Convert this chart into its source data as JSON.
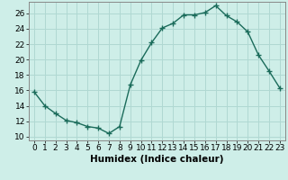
{
  "x": [
    0,
    1,
    2,
    3,
    4,
    5,
    6,
    7,
    8,
    9,
    10,
    11,
    12,
    13,
    14,
    15,
    16,
    17,
    18,
    19,
    20,
    21,
    22,
    23
  ],
  "y": [
    15.8,
    14.0,
    13.0,
    12.1,
    11.8,
    11.3,
    11.1,
    10.4,
    11.3,
    16.7,
    19.9,
    22.2,
    24.1,
    24.7,
    25.8,
    25.8,
    26.1,
    27.0,
    25.7,
    24.9,
    23.6,
    20.6,
    18.5,
    16.3
  ],
  "line_color": "#1a6b5a",
  "marker": "+",
  "marker_size": 4,
  "marker_linewidth": 1.0,
  "bg_color": "#ceeee8",
  "grid_color": "#b0d8d2",
  "xlabel": "Humidex (Indice chaleur)",
  "xlim": [
    -0.5,
    23.5
  ],
  "ylim": [
    9.5,
    27.5
  ],
  "yticks": [
    10,
    12,
    14,
    16,
    18,
    20,
    22,
    24,
    26
  ],
  "xlabel_fontsize": 7.5,
  "tick_fontsize": 6.5,
  "linewidth": 1.0
}
